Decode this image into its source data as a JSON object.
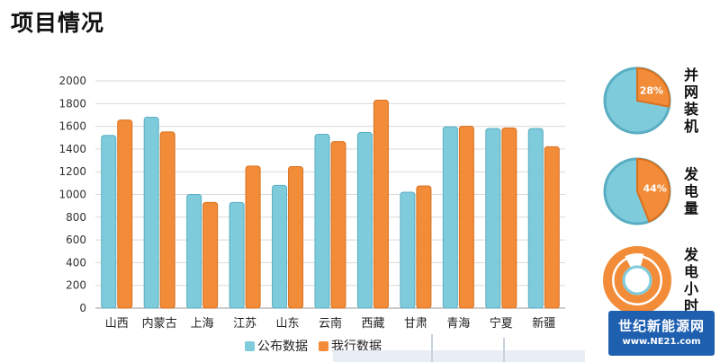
{
  "page": {
    "title": "项目情况"
  },
  "colors": {
    "published": "#7ecbdc",
    "published_edge": "#5aaec2",
    "ours": "#f28c38",
    "ours_edge": "#d9701f",
    "grid": "#d9d9d9",
    "axis": "#999999"
  },
  "chart_data": [
    {
      "type": "bar",
      "title": "",
      "xlabel": "",
      "ylabel": "",
      "ylim": [
        0,
        2000
      ],
      "yticks": [
        0,
        200,
        400,
        600,
        800,
        1000,
        1200,
        1400,
        1600,
        1800,
        2000
      ],
      "grid": true,
      "legend": "bottom",
      "categories": [
        "山西",
        "内蒙古",
        "上海",
        "江苏",
        "山东",
        "云南",
        "西藏",
        "甘肃",
        "青海",
        "宁夏",
        "新疆"
      ],
      "series": [
        {
          "name": "公布数据",
          "color": "#7ecbdc",
          "values": [
            1520,
            1680,
            1000,
            930,
            1080,
            1530,
            1545,
            1020,
            1595,
            1580,
            1580
          ]
        },
        {
          "name": "我行数据",
          "color": "#f28c38",
          "values": [
            1655,
            1550,
            930,
            1250,
            1245,
            1465,
            1830,
            1075,
            1600,
            1585,
            1420
          ]
        }
      ]
    },
    {
      "type": "pie",
      "label": "并网装机",
      "value_label": "28%",
      "values": [
        28,
        72
      ]
    },
    {
      "type": "pie",
      "label": "发电量",
      "value_label": "44%",
      "values": [
        44,
        56
      ]
    },
    {
      "type": "pie",
      "label": "发电小时",
      "value_label": "",
      "values": [
        88,
        12
      ]
    }
  ],
  "watermark": {
    "name": "世纪新能源网",
    "url": "www.NE21.com"
  }
}
